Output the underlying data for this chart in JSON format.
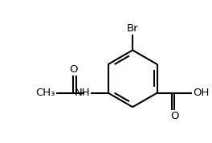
{
  "background": "#ffffff",
  "line_color": "#000000",
  "line_width": 1.5,
  "font_size": 9.5,
  "br_label": "Br",
  "o_label": "O",
  "oh_label": "OH",
  "nh_label": "NH",
  "ch3_label": "CH₃"
}
